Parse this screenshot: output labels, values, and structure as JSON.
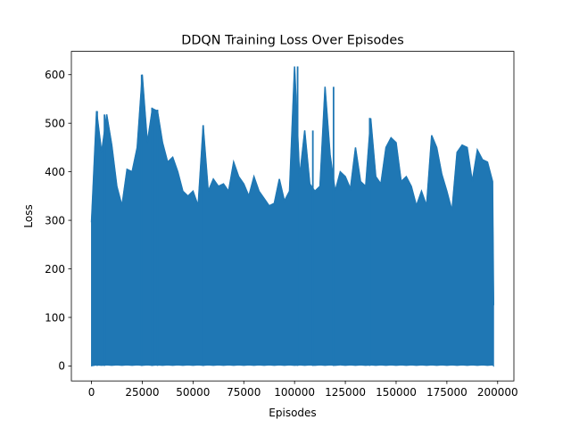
{
  "chart_data": {
    "type": "line",
    "title": "DDQN Training Loss Over Episodes",
    "xlabel": "Episodes",
    "ylabel": "Loss",
    "xlim": [
      -9900,
      208000
    ],
    "ylim": [
      -30.8,
      648
    ],
    "x_ticks": [
      0,
      25000,
      50000,
      75000,
      100000,
      125000,
      150000,
      175000,
      200000
    ],
    "y_ticks": [
      0,
      100,
      200,
      300,
      400,
      500,
      600
    ],
    "grid": false,
    "legend": "none",
    "line_color": "#1f77b4",
    "series": [
      {
        "x": [
          0,
          2500,
          5000,
          7500,
          10000,
          12500,
          15000,
          17500,
          20000,
          22500,
          25000,
          27500,
          30000,
          32500,
          35000,
          37500,
          40000,
          42500,
          45000,
          47500,
          50000,
          52500,
          55000,
          57500,
          60000,
          62500,
          65000,
          67500,
          70000,
          72500,
          75000,
          77500,
          80000,
          82500,
          85000,
          87500,
          90000,
          92500,
          95000,
          97500,
          100000,
          102500,
          105000,
          107500,
          110000,
          112500,
          115000,
          117500,
          120000,
          122500,
          125000,
          127500,
          130000,
          132500,
          135000,
          137500,
          140000,
          142500,
          145000,
          147500,
          150000,
          152500,
          155000,
          157500,
          160000,
          162500,
          165000,
          167500,
          170000,
          172500,
          175000,
          177500,
          180000,
          182500,
          185000,
          187500,
          190000,
          192500,
          195000,
          197500,
          198000
        ],
        "lower": [
          0,
          2,
          1,
          2,
          1,
          2,
          1,
          2,
          1,
          2,
          1,
          2,
          1,
          2,
          1,
          2,
          1,
          2,
          1,
          2,
          1,
          2,
          1,
          2,
          1,
          2,
          1,
          2,
          1,
          2,
          1,
          2,
          1,
          2,
          1,
          2,
          1,
          2,
          1,
          2,
          1,
          2,
          1,
          2,
          1,
          2,
          1,
          2,
          1,
          2,
          1,
          2,
          1,
          2,
          1,
          2,
          1,
          2,
          1,
          2,
          1,
          2,
          1,
          2,
          1,
          2,
          1,
          2,
          1,
          2,
          1,
          2,
          1,
          2,
          1,
          2,
          1,
          2,
          1,
          2,
          0
        ],
        "upper": [
          296,
          525,
          440,
          518,
          455,
          370,
          330,
          405,
          400,
          450,
          600,
          460,
          530,
          525,
          460,
          420,
          430,
          400,
          360,
          350,
          360,
          330,
          495,
          360,
          385,
          370,
          375,
          360,
          420,
          390,
          375,
          350,
          390,
          360,
          345,
          330,
          335,
          385,
          340,
          360,
          617,
          390,
          485,
          375,
          360,
          370,
          575,
          435,
          360,
          400,
          390,
          365,
          450,
          380,
          370,
          510,
          390,
          375,
          450,
          470,
          460,
          380,
          390,
          370,
          330,
          360,
          330,
          475,
          450,
          395,
          360,
          320,
          440,
          455,
          450,
          380,
          445,
          425,
          420,
          380,
          125
        ]
      }
    ],
    "spikes": [
      {
        "x": 24700,
        "y": 600
      },
      {
        "x": 101500,
        "y": 617
      },
      {
        "x": 119200,
        "y": 575
      },
      {
        "x": 2800,
        "y": 525
      },
      {
        "x": 6400,
        "y": 518
      },
      {
        "x": 29800,
        "y": 532
      },
      {
        "x": 32500,
        "y": 528
      },
      {
        "x": 55000,
        "y": 496
      },
      {
        "x": 109000,
        "y": 485
      },
      {
        "x": 137000,
        "y": 511
      }
    ]
  }
}
